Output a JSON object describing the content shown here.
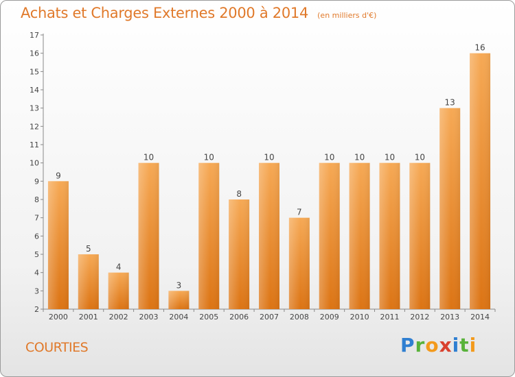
{
  "header": {
    "title": "Achats et Charges Externes 2000 à 2014",
    "subtitle": "(en milliers d'€)"
  },
  "place": "COURTIES",
  "logo": {
    "text": "Proxiti",
    "parts": [
      "P",
      "r",
      "o",
      "x",
      "i",
      "t",
      "i"
    ]
  },
  "colors": {
    "bar": "#f0902f",
    "bar_light": "#f7ae5c",
    "accent": "#e0792a"
  },
  "chart_data": {
    "type": "bar",
    "title": "Achats et Charges Externes 2000 à 2014",
    "subtitle": "(en milliers d'€)",
    "xlabel": "",
    "ylabel": "",
    "categories": [
      "2000",
      "2001",
      "2002",
      "2003",
      "2004",
      "2005",
      "2006",
      "2007",
      "2008",
      "2009",
      "2010",
      "2011",
      "2012",
      "2013",
      "2014"
    ],
    "values": [
      9,
      5,
      4,
      10,
      3,
      10,
      8,
      10,
      7,
      10,
      10,
      10,
      10,
      13,
      16
    ],
    "ylim": [
      2,
      17
    ],
    "yticks": [
      2,
      3,
      4,
      5,
      6,
      7,
      8,
      9,
      10,
      11,
      12,
      13,
      14,
      15,
      16,
      17
    ],
    "grid": false,
    "legend": "none"
  }
}
